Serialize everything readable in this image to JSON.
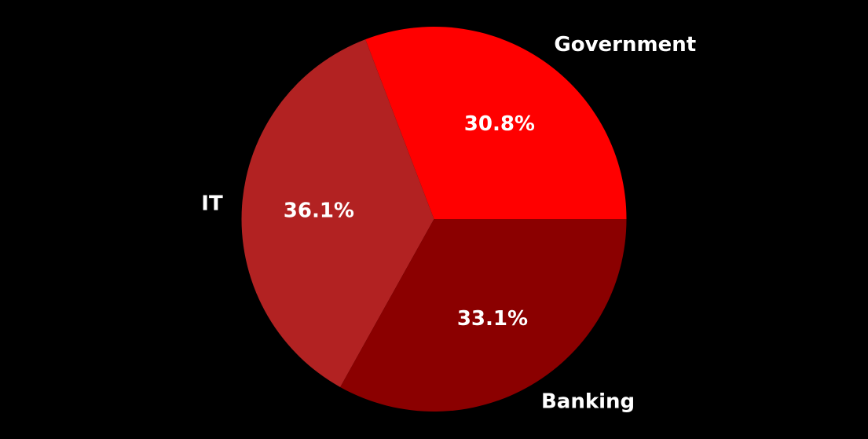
{
  "background": "#000000",
  "chart_data": {
    "type": "pie",
    "title": "",
    "slices": [
      {
        "label": "Government",
        "value": 30.8,
        "pct_text": "30.8%",
        "color": "#ff0000"
      },
      {
        "label": "IT",
        "value": 36.1,
        "pct_text": "36.1%",
        "color": "#b22222"
      },
      {
        "label": "Banking",
        "value": 33.1,
        "pct_text": "33.1%",
        "color": "#8b0000"
      }
    ],
    "start_angle_deg": 0,
    "direction": "counterclockwise",
    "legend": "none"
  }
}
